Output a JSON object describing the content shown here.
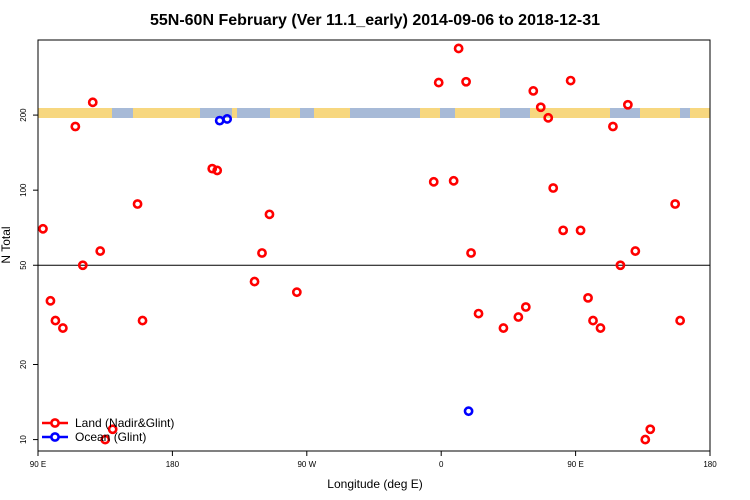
{
  "chart_data": {
    "type": "scatter",
    "title": "55N-60N February (Ver 11.1_early)   2014-09-06 to 2018-12-31",
    "xlabel": "Longitude (deg E)",
    "ylabel": "N Total",
    "xlim": [
      -90,
      180
    ],
    "ylim": [
      9,
      400
    ],
    "y_scale": "log",
    "x_ticks": [
      {
        "value": -90,
        "label": "90 E"
      },
      {
        "value": -36,
        "label": "180"
      },
      {
        "value": 18,
        "label": "90 W"
      },
      {
        "value": 72,
        "label": "0"
      },
      {
        "value": 126,
        "label": "90 E"
      },
      {
        "value": 180,
        "label": "180"
      }
    ],
    "y_ticks": [
      {
        "value": 10,
        "label": "10"
      },
      {
        "value": 20,
        "label": "20"
      },
      {
        "value": 50,
        "label": "50"
      },
      {
        "value": 100,
        "label": "100"
      },
      {
        "value": 200,
        "label": "200"
      }
    ],
    "reference_line": 50,
    "map_strip": {
      "ocean_color": "#a7bad7",
      "land_color": "#f7d77f"
    },
    "series": [
      {
        "name": "Land (Nadir&Glint)",
        "color": "#ff0000",
        "points": [
          [
            -88,
            70
          ],
          [
            -85,
            36
          ],
          [
            -83,
            30
          ],
          [
            -80,
            28
          ],
          [
            -75,
            180
          ],
          [
            -72,
            50
          ],
          [
            -68,
            225
          ],
          [
            -65,
            57
          ],
          [
            -63,
            10
          ],
          [
            -60,
            11
          ],
          [
            -50,
            88
          ],
          [
            -48,
            30
          ],
          [
            -20,
            122
          ],
          [
            -18,
            120
          ],
          [
            -3,
            43
          ],
          [
            0,
            56
          ],
          [
            3,
            80
          ],
          [
            14,
            39
          ],
          [
            69,
            108
          ],
          [
            71,
            270
          ],
          [
            77,
            109
          ],
          [
            79,
            370
          ],
          [
            82,
            272
          ],
          [
            84,
            56
          ],
          [
            87,
            32
          ],
          [
            97,
            28
          ],
          [
            103,
            31
          ],
          [
            106,
            34
          ],
          [
            109,
            250
          ],
          [
            112,
            215
          ],
          [
            115,
            195
          ],
          [
            117,
            102
          ],
          [
            121,
            69
          ],
          [
            124,
            275
          ],
          [
            128,
            69
          ],
          [
            131,
            37
          ],
          [
            133,
            30
          ],
          [
            136,
            28
          ],
          [
            141,
            180
          ],
          [
            144,
            50
          ],
          [
            147,
            220
          ],
          [
            150,
            57
          ],
          [
            154,
            10
          ],
          [
            156,
            11
          ],
          [
            166,
            88
          ],
          [
            168,
            30
          ]
        ]
      },
      {
        "name": "Ocean (Glint)",
        "color": "#0000ff",
        "points": [
          [
            -17,
            190
          ],
          [
            -14,
            193
          ],
          [
            83,
            13
          ]
        ]
      }
    ],
    "legend_position": "bottom-left"
  }
}
